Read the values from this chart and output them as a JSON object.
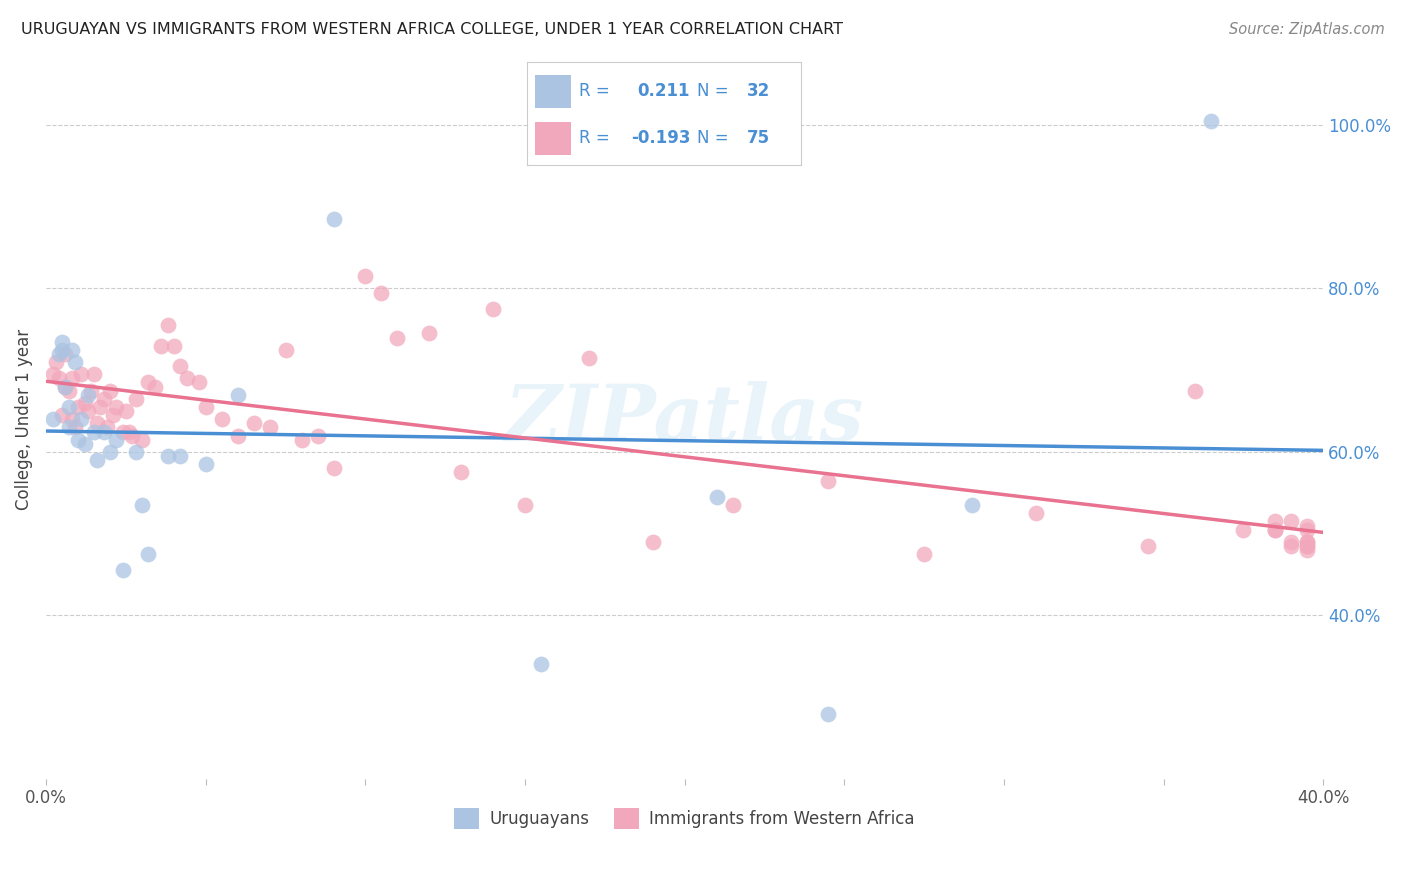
{
  "title": "URUGUAYAN VS IMMIGRANTS FROM WESTERN AFRICA COLLEGE, UNDER 1 YEAR CORRELATION CHART",
  "source": "Source: ZipAtlas.com",
  "ylabel": "College, Under 1 year",
  "legend_label1": "Uruguayans",
  "legend_label2": "Immigrants from Western Africa",
  "r1": 0.211,
  "n1": 32,
  "r2": -0.193,
  "n2": 75,
  "xlim": [
    0.0,
    0.4
  ],
  "ylim": [
    0.2,
    1.08
  ],
  "ytick_positions": [
    0.4,
    0.6,
    0.8,
    1.0
  ],
  "ytick_labels": [
    "40.0%",
    "60.0%",
    "80.0%",
    "100.0%"
  ],
  "color_blue": "#aac4e2",
  "color_pink": "#f2a8bc",
  "line_color_blue": "#4a8fd4",
  "line_color_pink": "#e8728f",
  "blue_scatter_x": [
    0.002,
    0.004,
    0.005,
    0.005,
    0.006,
    0.007,
    0.007,
    0.008,
    0.009,
    0.01,
    0.011,
    0.012,
    0.013,
    0.015,
    0.016,
    0.018,
    0.02,
    0.022,
    0.024,
    0.028,
    0.03,
    0.032,
    0.038,
    0.042,
    0.05,
    0.06,
    0.09,
    0.155,
    0.21,
    0.245,
    0.29,
    0.365
  ],
  "blue_scatter_y": [
    0.64,
    0.72,
    0.735,
    0.725,
    0.68,
    0.655,
    0.63,
    0.725,
    0.71,
    0.615,
    0.64,
    0.61,
    0.67,
    0.625,
    0.59,
    0.625,
    0.6,
    0.615,
    0.455,
    0.6,
    0.535,
    0.475,
    0.595,
    0.595,
    0.585,
    0.67,
    0.885,
    0.34,
    0.545,
    0.28,
    0.535,
    1.005
  ],
  "pink_scatter_x": [
    0.002,
    0.003,
    0.004,
    0.005,
    0.006,
    0.006,
    0.007,
    0.008,
    0.008,
    0.009,
    0.01,
    0.011,
    0.012,
    0.013,
    0.014,
    0.015,
    0.016,
    0.017,
    0.018,
    0.019,
    0.02,
    0.021,
    0.022,
    0.024,
    0.025,
    0.026,
    0.027,
    0.028,
    0.03,
    0.032,
    0.034,
    0.036,
    0.038,
    0.04,
    0.042,
    0.044,
    0.048,
    0.05,
    0.055,
    0.06,
    0.065,
    0.07,
    0.075,
    0.08,
    0.085,
    0.09,
    0.1,
    0.105,
    0.11,
    0.12,
    0.13,
    0.14,
    0.15,
    0.17,
    0.19,
    0.215,
    0.245,
    0.275,
    0.31,
    0.345,
    0.36,
    0.375,
    0.385,
    0.385,
    0.385,
    0.39,
    0.39,
    0.39,
    0.395,
    0.395,
    0.395,
    0.395,
    0.395,
    0.395,
    0.395
  ],
  "pink_scatter_y": [
    0.695,
    0.71,
    0.69,
    0.645,
    0.68,
    0.72,
    0.675,
    0.64,
    0.69,
    0.63,
    0.655,
    0.695,
    0.66,
    0.65,
    0.675,
    0.695,
    0.635,
    0.655,
    0.665,
    0.63,
    0.675,
    0.645,
    0.655,
    0.625,
    0.65,
    0.625,
    0.62,
    0.665,
    0.615,
    0.685,
    0.68,
    0.73,
    0.755,
    0.73,
    0.705,
    0.69,
    0.685,
    0.655,
    0.64,
    0.62,
    0.635,
    0.63,
    0.725,
    0.615,
    0.62,
    0.58,
    0.815,
    0.795,
    0.74,
    0.745,
    0.575,
    0.775,
    0.535,
    0.715,
    0.49,
    0.535,
    0.565,
    0.475,
    0.525,
    0.485,
    0.675,
    0.505,
    0.505,
    0.505,
    0.515,
    0.49,
    0.515,
    0.485,
    0.505,
    0.51,
    0.485,
    0.49,
    0.48,
    0.485,
    0.49
  ],
  "watermark": "ZIPatlas",
  "background_color": "#ffffff",
  "grid_color": "#cccccc"
}
